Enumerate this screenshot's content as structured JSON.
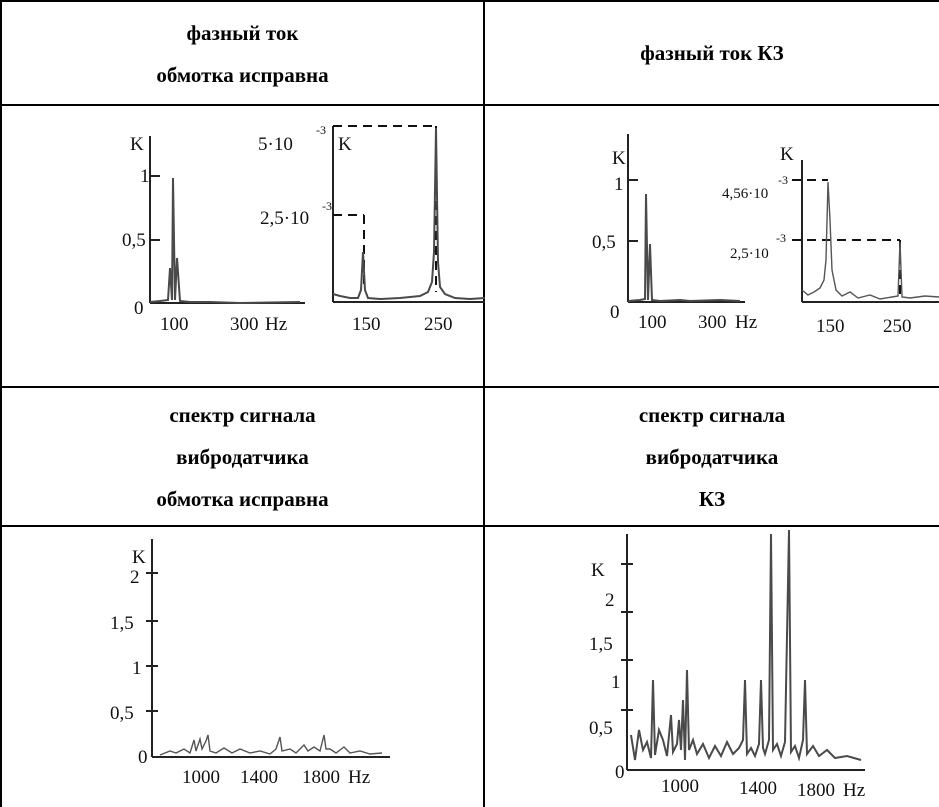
{
  "headers": {
    "top_left": [
      "фазный ток",
      "обмотка исправна"
    ],
    "top_right": [
      "фазный ток КЗ"
    ],
    "mid_left": [
      "спектр сигнала",
      "вибродатчика",
      "обмотка исправна"
    ],
    "mid_right": [
      "спектр сигнала",
      "вибродатчика",
      "КЗ"
    ]
  },
  "plots": {
    "current_ok_low": {
      "ylabel": "K",
      "yticks": [
        "0",
        "0,5",
        "1"
      ],
      "xticks": [
        "100",
        "300"
      ],
      "xunit": "Hz"
    },
    "current_ok_high": {
      "ylabel": "K",
      "peak_labels": [
        {
          "base": "5·10",
          "exp": "-3"
        },
        {
          "base": "2,5·10",
          "exp": "-3"
        }
      ],
      "xticks": [
        "150",
        "250"
      ]
    },
    "current_fault_low": {
      "ylabel": "K",
      "yticks": [
        "0",
        "0,5",
        "1"
      ],
      "xticks": [
        "100",
        "300"
      ],
      "xunit": "Hz"
    },
    "current_fault_high": {
      "ylabel": "K",
      "peak_labels": [
        {
          "base": "4,56·10",
          "exp": "-3"
        },
        {
          "base": "2,5·10",
          "exp": "-3"
        }
      ],
      "xticks": [
        "150",
        "250"
      ]
    },
    "vibration_ok": {
      "ylabel": "K",
      "yticks": [
        "0",
        "0,5",
        "1",
        "1,5",
        "2"
      ],
      "xticks": [
        "1000",
        "1400",
        "1800"
      ],
      "xunit": "Hz"
    },
    "vibration_fault": {
      "ylabel": "K",
      "yticks": [
        "0",
        "0,5",
        "1",
        "1,5",
        "2"
      ],
      "xticks": [
        "1000",
        "1400",
        "1800"
      ],
      "xunit": "Hz"
    }
  }
}
